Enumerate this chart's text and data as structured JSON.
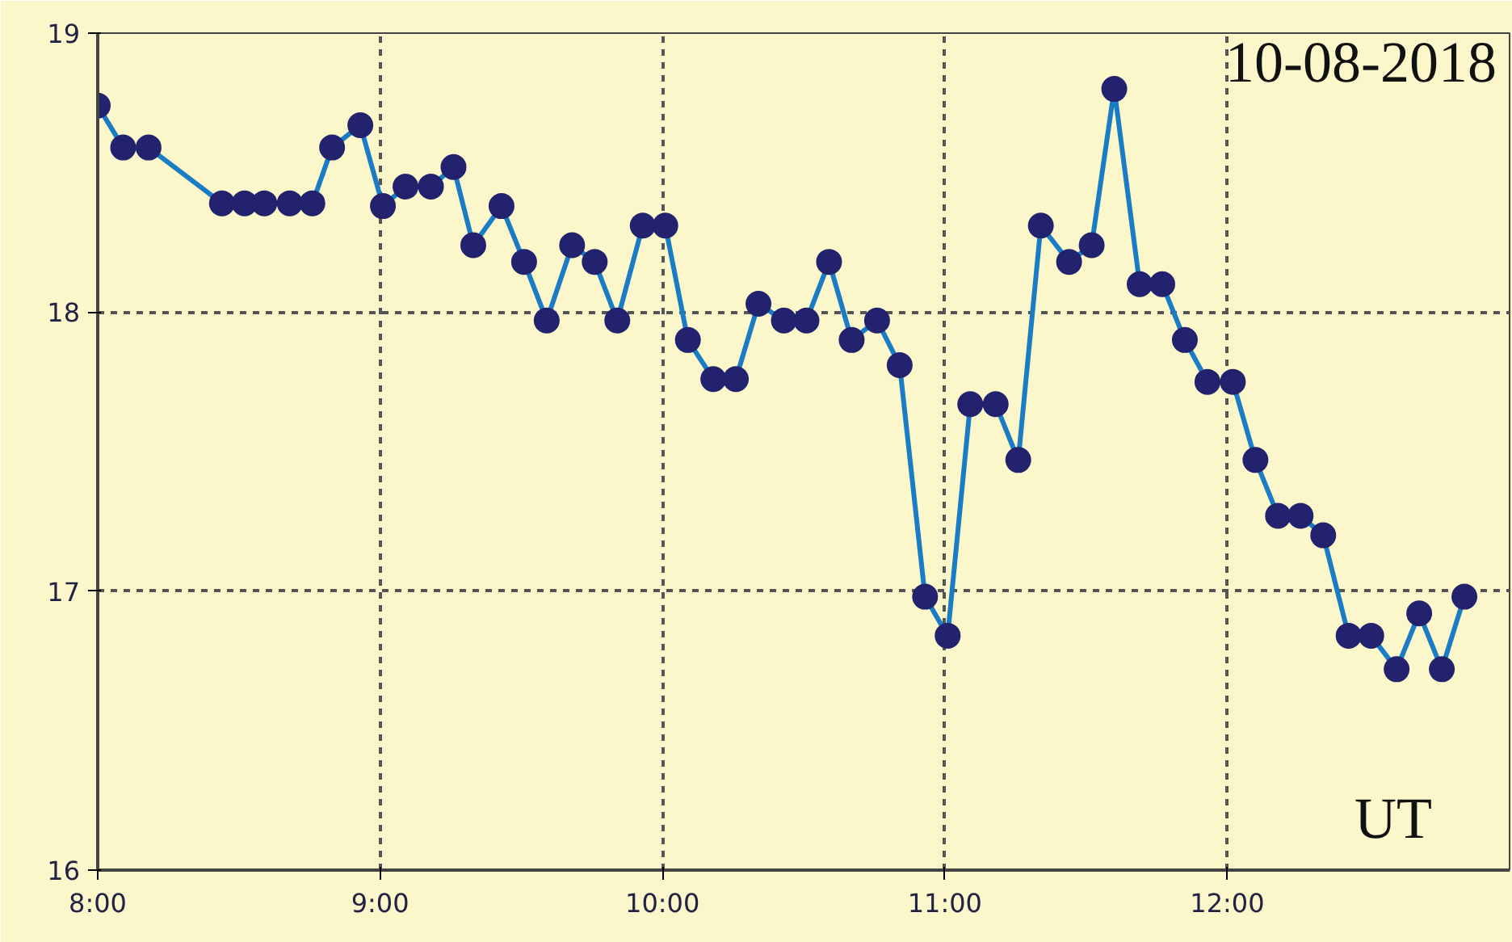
{
  "chart_data": {
    "type": "line",
    "marker": "circle",
    "line_style": "solid",
    "grid": true,
    "x": [
      8.0,
      8.09,
      8.18,
      8.44,
      8.52,
      8.59,
      8.68,
      8.76,
      8.83,
      8.93,
      9.01,
      9.09,
      9.18,
      9.26,
      9.33,
      9.43,
      9.51,
      9.59,
      9.68,
      9.76,
      9.84,
      9.93,
      10.01,
      10.09,
      10.18,
      10.26,
      10.34,
      10.43,
      10.51,
      10.59,
      10.67,
      10.76,
      10.84,
      10.93,
      11.01,
      11.09,
      11.18,
      11.26,
      11.34,
      11.44,
      11.52,
      11.6,
      11.69,
      11.77,
      11.85,
      11.93,
      12.02,
      12.1,
      12.18,
      12.26,
      12.34,
      12.43,
      12.51,
      12.6,
      12.68,
      12.76,
      12.84
    ],
    "series": [
      {
        "color": "#1a7cc4",
        "values": [
          18.74,
          18.59,
          18.59,
          18.39,
          18.39,
          18.39,
          18.39,
          18.39,
          18.59,
          18.67,
          18.38,
          18.45,
          18.45,
          18.52,
          18.24,
          18.38,
          18.18,
          17.97,
          18.24,
          18.18,
          17.97,
          18.31,
          18.31,
          17.9,
          17.76,
          17.76,
          18.03,
          17.97,
          17.97,
          18.18,
          17.9,
          17.97,
          17.81,
          16.98,
          16.84,
          17.67,
          17.67,
          17.47,
          18.31,
          18.18,
          18.24,
          18.8,
          18.1,
          18.1,
          17.9,
          17.75,
          17.75,
          17.47,
          17.27,
          17.27,
          17.2,
          16.84,
          16.84,
          16.72,
          16.92,
          16.72,
          16.98
        ]
      }
    ],
    "xlim": [
      8,
      13
    ],
    "ylim": [
      16,
      19
    ],
    "xticks": [
      {
        "value": 8,
        "label": "8:00"
      },
      {
        "value": 9,
        "label": "9:00"
      },
      {
        "value": 10,
        "label": "10:00"
      },
      {
        "value": 11,
        "label": "11:00"
      },
      {
        "value": 12,
        "label": "12:00"
      }
    ],
    "yticks": [
      16,
      17,
      18,
      19
    ],
    "annotations": [
      "10-08-2018",
      "UT"
    ]
  }
}
